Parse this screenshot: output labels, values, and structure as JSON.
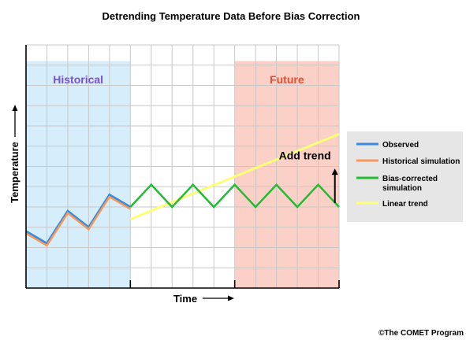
{
  "chart_data": {
    "type": "line",
    "title": "Detrending Temperature Data Before Bias Correction",
    "xlabel": "Time",
    "ylabel": "Temperature",
    "grid": true,
    "legend_placement": "right",
    "regions": [
      {
        "label": "Historical",
        "x_range": [
          0,
          5
        ],
        "fill": "#d6edfb",
        "label_color": "#7a4fd6"
      },
      {
        "label": "Future",
        "x_range": [
          10,
          15
        ],
        "fill": "#fbd0c6",
        "label_color": "#f04a2a"
      }
    ],
    "x_range": [
      0,
      15
    ],
    "y_range": [
      0,
      12
    ],
    "series": [
      {
        "name": "Observed",
        "color": "#3b8be0",
        "x": [
          0,
          1,
          2,
          3,
          4,
          5
        ],
        "y": [
          2.8,
          2.2,
          3.8,
          3.0,
          4.6,
          4.0
        ]
      },
      {
        "name": "Historical simulation",
        "color": "#f59a5c",
        "x": [
          0,
          1,
          2,
          3,
          4,
          5
        ],
        "y": [
          2.7,
          2.1,
          3.7,
          2.9,
          4.5,
          3.9
        ]
      },
      {
        "name": "Bias-corrected\nsimulation",
        "color": "#22bb33",
        "x": [
          5,
          6,
          7,
          8,
          9,
          10,
          11,
          12,
          13,
          14,
          15
        ],
        "y": [
          4.0,
          5.1,
          4.0,
          5.1,
          4.0,
          5.1,
          4.0,
          5.1,
          4.0,
          5.1,
          4.0
        ]
      },
      {
        "name": "Linear trend",
        "color": "#ffff77",
        "x": [
          5,
          15
        ],
        "y": [
          3.4,
          7.6
        ]
      }
    ],
    "annotations": [
      {
        "text": "Add trend",
        "arrow": "up",
        "x": 14.8,
        "y_from": 4.2,
        "y_to": 5.9
      }
    ]
  },
  "copyright": "©The COMET Program"
}
